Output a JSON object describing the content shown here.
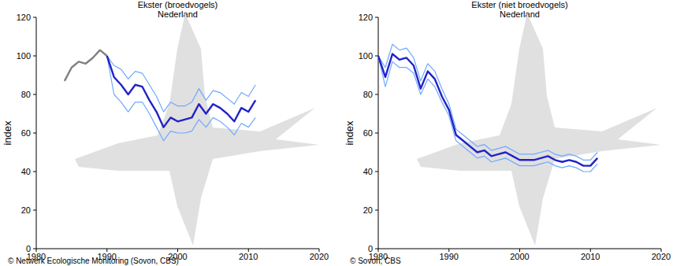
{
  "chart_data": [
    {
      "type": "line",
      "title": "Ekster (broedvogels)",
      "subtitle": "Nederland",
      "y_label": "index",
      "source": "© Netwerk Ecologische Monitoring (Sovon, CBS)",
      "x": [
        1984,
        1985,
        1986,
        1987,
        1988,
        1989,
        1990,
        1991,
        1992,
        1993,
        1994,
        1995,
        1996,
        1997,
        1998,
        1999,
        2000,
        2001,
        2002,
        2003,
        2004,
        2005,
        2006,
        2007,
        2008,
        2009,
        2010,
        2011
      ],
      "series": [
        {
          "color": "#6fa8ff",
          "values": [
            null,
            null,
            null,
            null,
            null,
            null,
            100,
            95,
            93,
            88,
            92,
            91,
            85,
            79,
            71,
            76,
            74,
            74,
            76,
            83,
            77,
            82,
            81,
            78,
            75,
            81,
            79,
            85
          ]
        },
        {
          "color": "#6fa8ff",
          "values": [
            null,
            null,
            null,
            null,
            null,
            null,
            100,
            80,
            76,
            71,
            76,
            76,
            70,
            63,
            56,
            61,
            60,
            60,
            61,
            67,
            63,
            68,
            66,
            63,
            59,
            65,
            63,
            68
          ]
        },
        {
          "color": "#808080",
          "values": [
            87,
            94,
            97,
            96,
            99,
            103,
            100,
            null,
            null,
            null,
            null,
            null,
            null,
            null,
            null,
            null,
            null,
            null,
            null,
            null,
            null,
            null,
            null,
            null,
            null,
            null,
            null,
            null
          ]
        },
        {
          "color": "#2222c8",
          "values": [
            null,
            null,
            null,
            null,
            null,
            null,
            100,
            89,
            85,
            80,
            85,
            84,
            77,
            71,
            63,
            68,
            66,
            67,
            68,
            75,
            70,
            75,
            73,
            70,
            66,
            73,
            71,
            77
          ]
        }
      ],
      "xlim": [
        1980,
        2020
      ],
      "xticks": [
        1980,
        1990,
        2000,
        2010,
        2020
      ],
      "ylim": [
        0,
        120
      ],
      "yticks": [
        0,
        20,
        40,
        60,
        80,
        100,
        120
      ],
      "grid": false
    },
    {
      "type": "line",
      "title": "Ekster (niet broedvogels)",
      "subtitle": "Nederland",
      "y_label": "index",
      "source": "© Sovon, CBS",
      "x": [
        1980,
        1981,
        1982,
        1983,
        1984,
        1985,
        1986,
        1987,
        1988,
        1989,
        1990,
        1991,
        1992,
        1993,
        1994,
        1995,
        1996,
        1997,
        1998,
        1999,
        2000,
        2001,
        2002,
        2003,
        2004,
        2005,
        2006,
        2007,
        2008,
        2009,
        2010,
        2011
      ],
      "series": [
        {
          "color": "#6fa8ff",
          "values": [
            100,
            94,
            106,
            103,
            104,
            99,
            87,
            96,
            92,
            83,
            75,
            62,
            59,
            56,
            53,
            54,
            51,
            52,
            53,
            51,
            49,
            49,
            49,
            50,
            51,
            49,
            48,
            49,
            48,
            46,
            46,
            50
          ]
        },
        {
          "color": "#6fa8ff",
          "values": [
            100,
            84,
            97,
            94,
            94,
            91,
            80,
            88,
            84,
            76,
            69,
            56,
            53,
            50,
            47,
            48,
            45,
            46,
            47,
            45,
            43,
            43,
            43,
            44,
            45,
            43,
            42,
            43,
            42,
            40,
            40,
            44
          ]
        },
        {
          "color": "#2222c8",
          "values": [
            100,
            89,
            101,
            98,
            99,
            95,
            83,
            92,
            88,
            79,
            72,
            59,
            56,
            53,
            50,
            51,
            48,
            49,
            50,
            48,
            46,
            46,
            46,
            47,
            48,
            46,
            45,
            46,
            45,
            43,
            43,
            47
          ]
        }
      ],
      "xlim": [
        1980,
        2020
      ],
      "xticks": [
        1980,
        1990,
        2000,
        2010,
        2020
      ],
      "ylim": [
        0,
        120
      ],
      "yticks": [
        0,
        20,
        40,
        60,
        80,
        100,
        120
      ],
      "grid": false
    }
  ]
}
